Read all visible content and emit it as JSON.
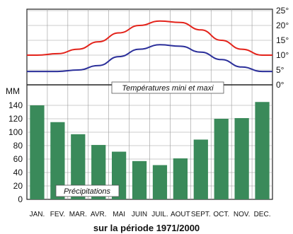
{
  "chart_data": {
    "type": "bar",
    "categories": [
      "JAN.",
      "FEV.",
      "MAR.",
      "AVR.",
      "MAI",
      "JUIN",
      "JUIL.",
      "AOUT",
      "SEPT.",
      "OCT.",
      "NOV.",
      "DEC."
    ],
    "precip_unit": "MM",
    "precip_ticks": [
      "0",
      "20",
      "40",
      "60",
      "80",
      "100",
      "120",
      "140"
    ],
    "precip_ylim": [
      0,
      160
    ],
    "temp_ticks": [
      "0°",
      "5°",
      "10°",
      "15°",
      "20°",
      "25°"
    ],
    "temp_ylim": [
      0,
      25
    ],
    "series": [
      {
        "name": "Précipitations",
        "kind": "bar",
        "color": "#3a8a5a",
        "values": [
          140,
          115,
          97,
          81,
          71,
          57,
          51,
          61,
          89,
          120,
          121,
          145
        ]
      },
      {
        "name": "maxi",
        "kind": "line",
        "color": "#e3231b",
        "values": [
          10,
          10.5,
          12,
          14.5,
          17.5,
          20,
          21.5,
          21,
          18.5,
          15,
          12,
          10
        ]
      },
      {
        "name": "mini",
        "kind": "line",
        "color": "#2b2f9a",
        "values": [
          4.5,
          4.5,
          5,
          6.5,
          9.5,
          12,
          13.5,
          13,
          11,
          8.5,
          6,
          4.5
        ]
      }
    ],
    "annotations": {
      "temperature": "Températures mini et maxi",
      "precipitation": "Précipitations"
    },
    "footer": "sur la période 1971/2000",
    "grid": true
  }
}
